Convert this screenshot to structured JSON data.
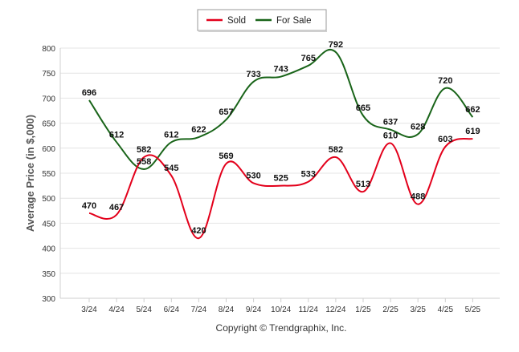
{
  "chart_data": {
    "type": "line",
    "categories": [
      "3/24",
      "4/24",
      "5/24",
      "6/24",
      "7/24",
      "8/24",
      "9/24",
      "10/24",
      "11/24",
      "12/24",
      "1/25",
      "2/25",
      "3/25",
      "4/25",
      "5/25"
    ],
    "series": [
      {
        "name": "Sold",
        "color": "#e3001b",
        "values": [
          470,
          467,
          582,
          545,
          420,
          569,
          530,
          525,
          533,
          582,
          513,
          610,
          488,
          603,
          619
        ]
      },
      {
        "name": "For Sale",
        "color": "#196419",
        "values": [
          696,
          612,
          558,
          612,
          622,
          657,
          733,
          743,
          765,
          792,
          665,
          637,
          628,
          720,
          662
        ]
      }
    ],
    "ylabel": "Average Price (in $,000)",
    "xlabel": "",
    "ylim": [
      300,
      800
    ],
    "yticks": [
      300,
      350,
      400,
      450,
      500,
      550,
      600,
      650,
      700,
      750,
      800
    ],
    "grid": true,
    "legend_position": "top-center",
    "footer": "Copyright © Trendgraphix, Inc."
  }
}
